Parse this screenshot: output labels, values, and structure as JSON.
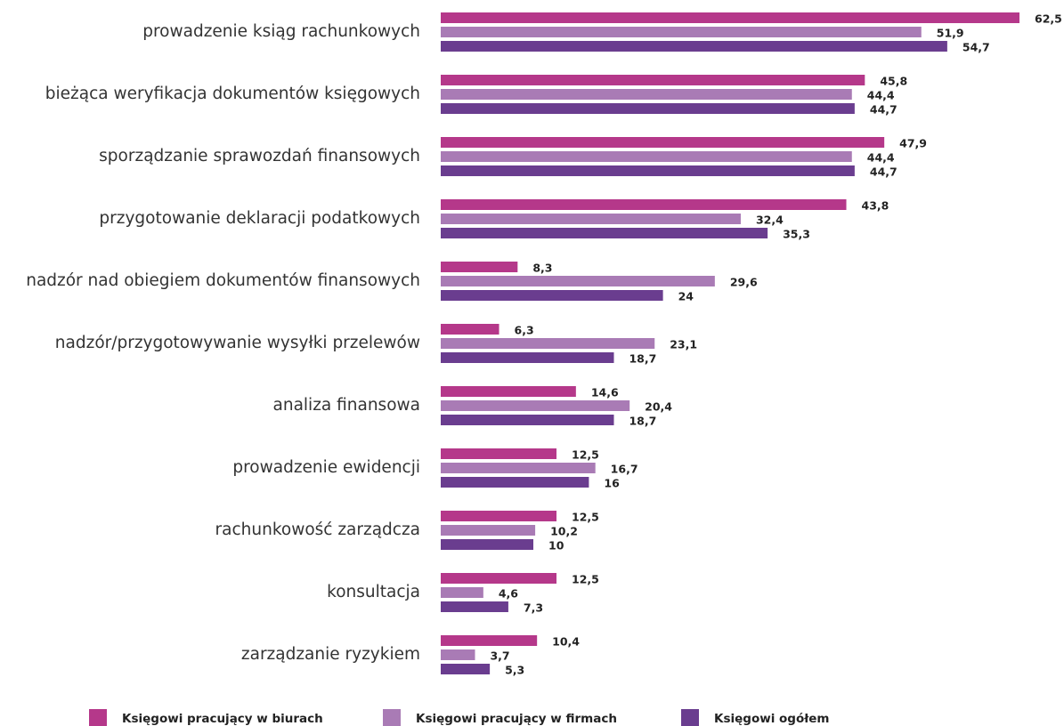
{
  "chart_data": {
    "type": "barh",
    "categories": [
      "prowadzenie ksiąg rachunkowych",
      "bieżąca weryfikacja dokumentów księgowych",
      "sporządzanie sprawozdań finansowych",
      "przygotowanie deklaracji podatkowych",
      "nadzór nad obiegiem dokumentów finansowych",
      "nadzór/przygotowywanie wysyłki przelewów",
      "analiza finansowa",
      "prowadzenie ewidencji",
      "rachunkowość zarządcza",
      "konsultacja",
      "zarządzanie ryzykiem"
    ],
    "series": [
      {
        "name": "Księgowi pracujący w biurach",
        "color": "#b5388a",
        "values": [
          62.5,
          45.8,
          47.9,
          43.8,
          8.3,
          6.3,
          14.6,
          12.5,
          12.5,
          12.5,
          10.4
        ],
        "value_labels": [
          "62,5",
          "45,8",
          "47,9",
          "43,8",
          "8,3",
          "6,3",
          "14,6",
          "12,5",
          "12,5",
          "12,5",
          "10,4"
        ]
      },
      {
        "name": "Księgowi pracujący w firmach",
        "color": "#a97bb5",
        "values": [
          51.9,
          44.4,
          44.4,
          32.4,
          29.6,
          23.1,
          20.4,
          16.7,
          10.2,
          4.6,
          3.7
        ],
        "value_labels": [
          "51,9",
          "44,4",
          "44,4",
          "32,4",
          "29,6",
          "23,1",
          "20,4",
          "16,7",
          "10,2",
          "4,6",
          "3,7"
        ]
      },
      {
        "name": "Księgowi ogółem",
        "color": "#6a3d8f",
        "values": [
          54.7,
          44.7,
          44.7,
          35.3,
          24,
          18.7,
          18.7,
          16,
          10,
          7.3,
          5.3
        ],
        "value_labels": [
          "54,7",
          "44,7",
          "44,7",
          "35,3",
          "24",
          "18,7",
          "18,7",
          "16",
          "10",
          "7,3",
          "5,3"
        ]
      }
    ]
  }
}
